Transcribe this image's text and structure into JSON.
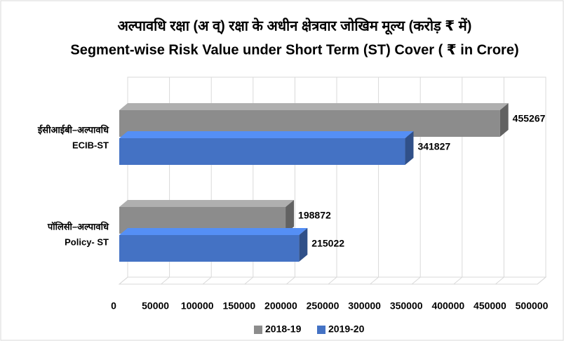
{
  "chart_data": {
    "type": "bar3d_horizontal",
    "title": "अल्पावधि रक्षा (अ व्) रक्षा के अधीन क्षेत्रवार जोखिम मूल्य (करोड़ ₹ में)",
    "subtitle": "Segment-wise Risk Value under Short Term (ST) Cover ( ₹ in Crore)",
    "categories": [
      [
        "ईसीआईबी–अल्पावधि",
        "ECIB-ST"
      ],
      [
        "पॉलिसी–अल्पावधि",
        "Policy- ST"
      ]
    ],
    "series": [
      {
        "name": "2018-19",
        "color": "#8c8c8c",
        "values": [
          455267,
          198872
        ]
      },
      {
        "name": "2019-20",
        "color": "#4472c4",
        "values": [
          341827,
          215022
        ]
      }
    ],
    "xlim": [
      0,
      500000
    ],
    "xticks": [
      0,
      50000,
      100000,
      150000,
      200000,
      250000,
      300000,
      350000,
      400000,
      450000,
      500000
    ],
    "grid": true,
    "legend": "bottom"
  }
}
